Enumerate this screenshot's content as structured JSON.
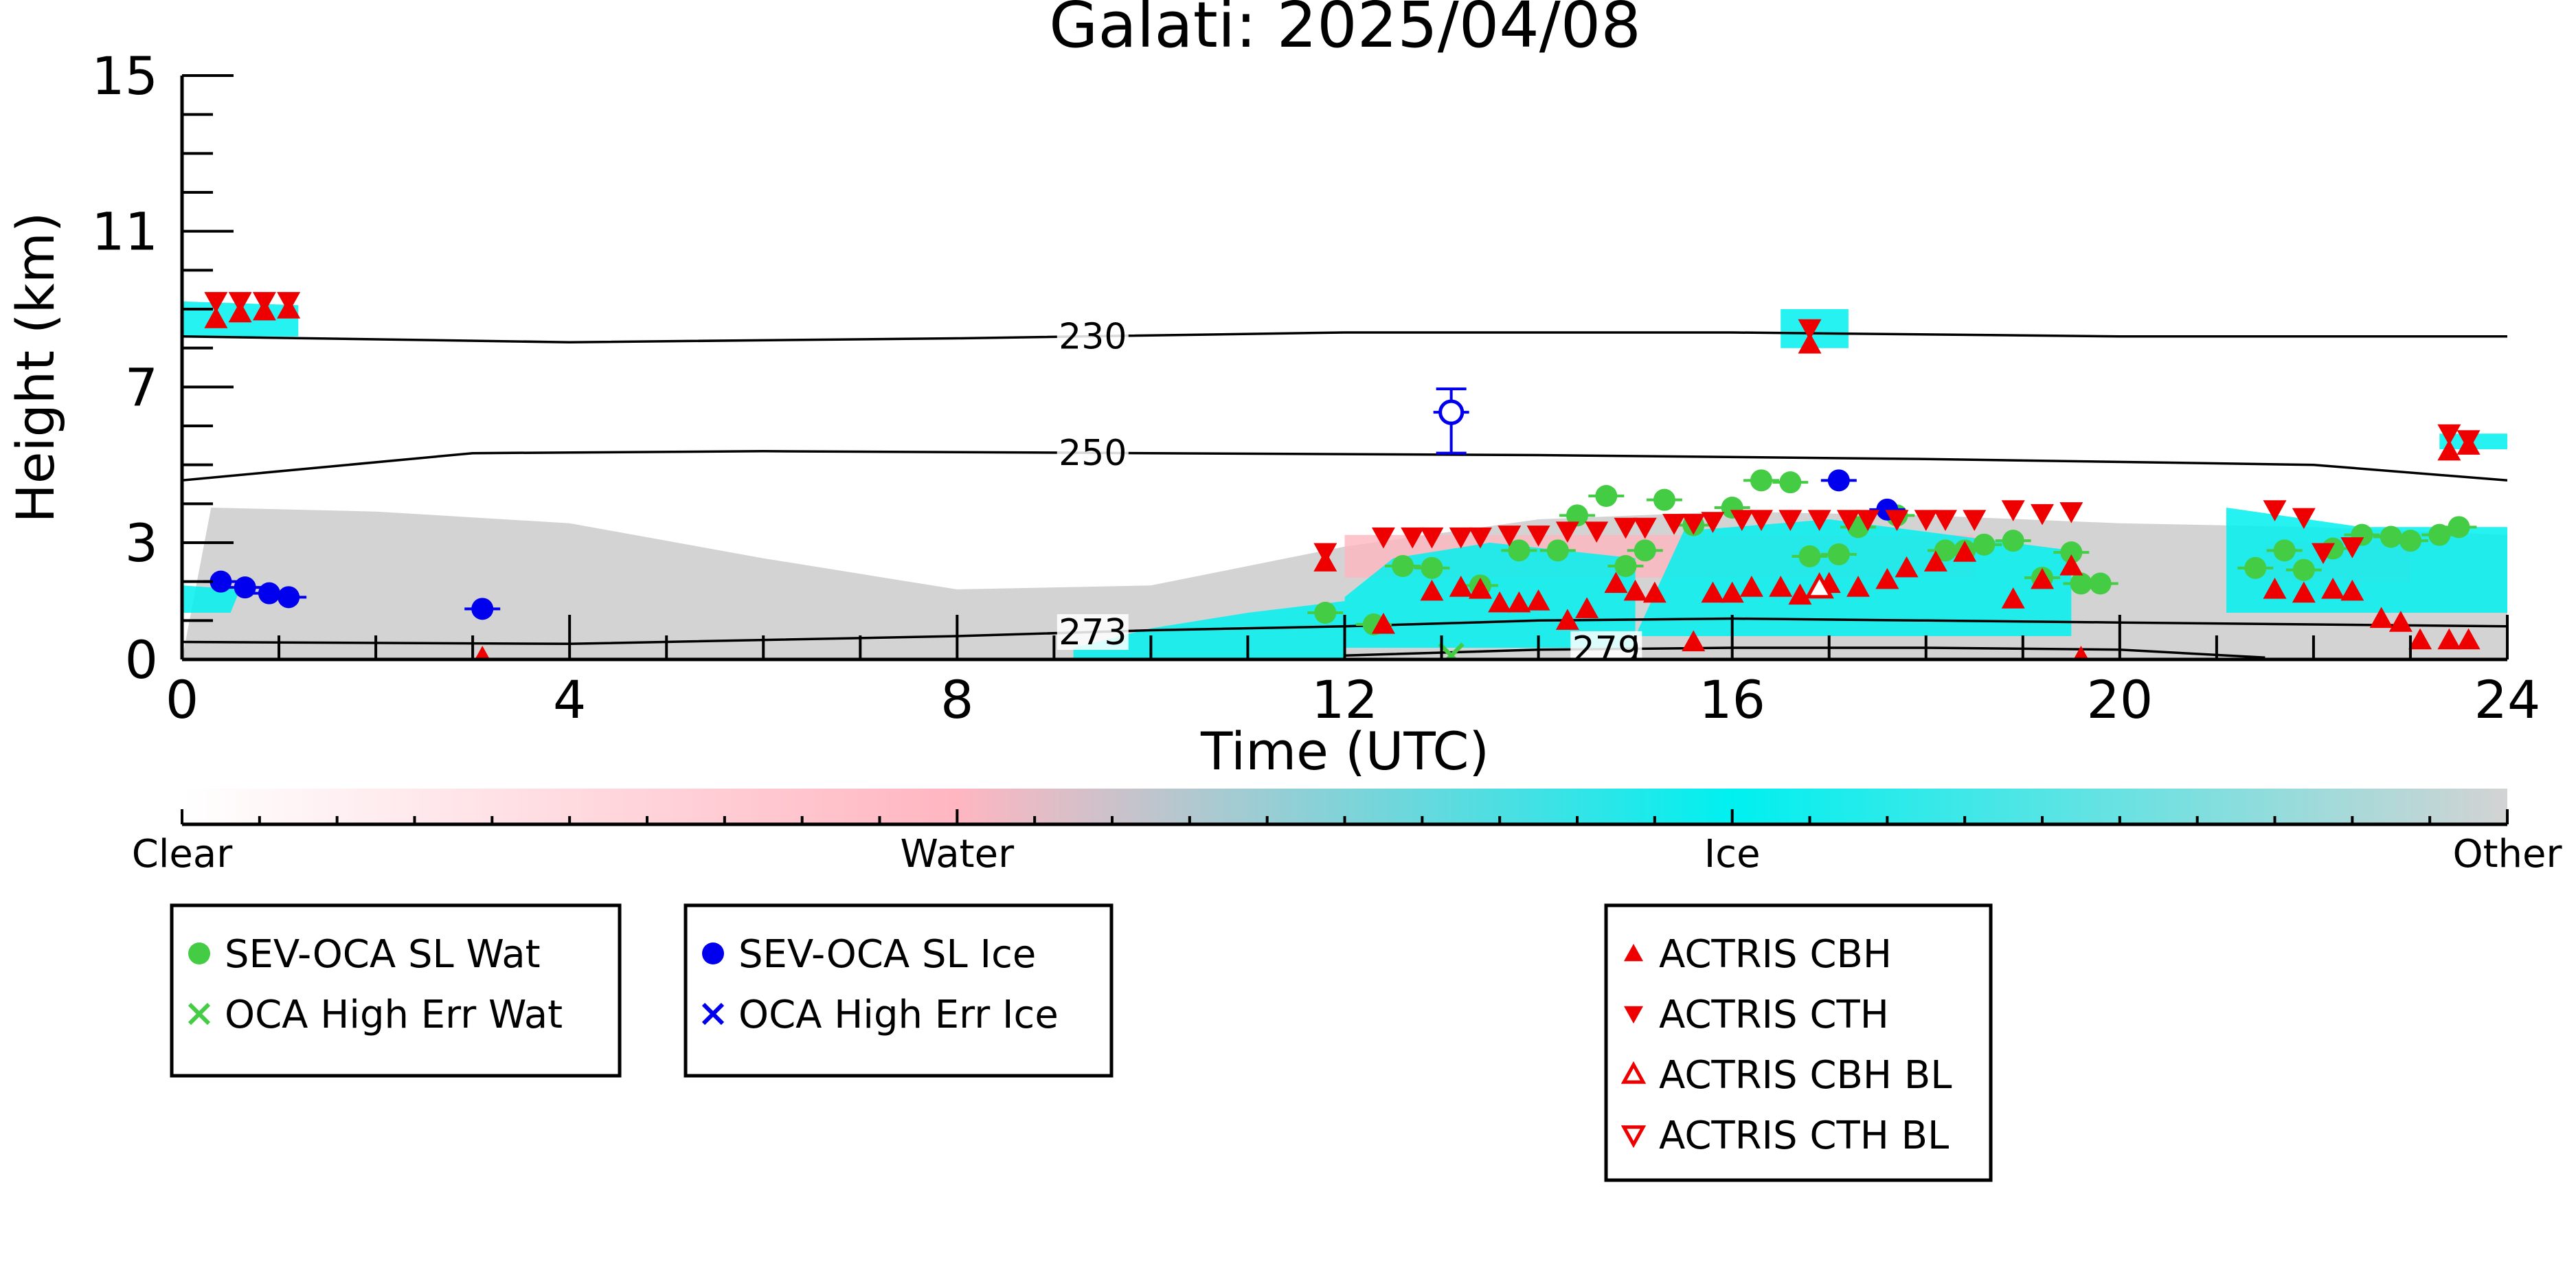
{
  "chart_data": {
    "type": "scatter",
    "title": "Galati: 2025/04/08",
    "xlabel": "Time (UTC)",
    "ylabel": "Height (km)",
    "xlim": [
      0,
      24
    ],
    "ylim": [
      0,
      15
    ],
    "x_ticks": [
      "0",
      "4",
      "8",
      "12",
      "16",
      "20",
      "24"
    ],
    "y_ticks": [
      "0",
      "3",
      "7",
      "11",
      "15"
    ],
    "background": {
      "description_type": "classification-curtain",
      "colors": {
        "clear": "#ffffff",
        "water": "#ffb6c1",
        "ice": "#00f0f0",
        "other": "#d3d3d3"
      },
      "other_layer": [
        [
          0,
          0
        ],
        [
          0.3,
          3.9
        ],
        [
          2,
          3.8
        ],
        [
          4,
          3.5
        ],
        [
          6,
          2.6
        ],
        [
          8,
          1.8
        ],
        [
          10,
          1.9
        ],
        [
          12,
          2.9
        ],
        [
          14,
          3.6
        ],
        [
          16,
          3.8
        ],
        [
          18,
          3.7
        ],
        [
          20,
          3.5
        ],
        [
          22,
          3.4
        ],
        [
          24,
          3.2
        ],
        [
          24,
          0
        ]
      ],
      "ice_patches": [
        [
          [
            0,
            8.3
          ],
          [
            1.2,
            8.3
          ],
          [
            1.2,
            9.1
          ],
          [
            0,
            9.2
          ]
        ],
        [
          [
            0,
            1.2
          ],
          [
            0.5,
            1.2
          ],
          [
            0.6,
            1.8
          ],
          [
            0,
            1.9
          ]
        ],
        [
          [
            9.2,
            0
          ],
          [
            12,
            0
          ],
          [
            12,
            1.5
          ],
          [
            11,
            1.2
          ],
          [
            10,
            0.8
          ],
          [
            9.2,
            0.3
          ]
        ],
        [
          [
            12,
            0.3
          ],
          [
            15,
            0.3
          ],
          [
            15,
            2.6
          ],
          [
            13.5,
            3
          ],
          [
            12.5,
            2.6
          ],
          [
            12,
            1.6
          ]
        ],
        [
          [
            15,
            0.6
          ],
          [
            19.5,
            0.6
          ],
          [
            19.5,
            2.8
          ],
          [
            17,
            3.6
          ],
          [
            15.5,
            3.3
          ]
        ],
        [
          [
            21.1,
            1.2
          ],
          [
            24,
            1.2
          ],
          [
            24,
            3.4
          ],
          [
            22.5,
            3.4
          ],
          [
            21.1,
            3.9
          ]
        ],
        [
          [
            23.3,
            5.4
          ],
          [
            24,
            5.4
          ],
          [
            24,
            5.8
          ],
          [
            23.3,
            5.8
          ]
        ],
        [
          [
            16.5,
            8
          ],
          [
            17.2,
            8
          ],
          [
            17.2,
            9
          ],
          [
            16.5,
            9
          ]
        ]
      ],
      "water_patches": [
        [
          [
            12,
            2.1
          ],
          [
            18.5,
            2.1
          ],
          [
            18.5,
            3.2
          ],
          [
            12,
            3.2
          ]
        ],
        [
          [
            21.5,
            2
          ],
          [
            23,
            2
          ],
          [
            23,
            3.0
          ],
          [
            21.5,
            3.0
          ]
        ]
      ]
    },
    "contours": [
      {
        "label": "230",
        "label_x": 9.4,
        "points": [
          [
            0,
            8.3
          ],
          [
            4,
            8.15
          ],
          [
            8,
            8.25
          ],
          [
            12,
            8.4
          ],
          [
            16,
            8.4
          ],
          [
            20,
            8.3
          ],
          [
            24,
            8.3
          ]
        ]
      },
      {
        "label": "250",
        "label_x": 9.4,
        "points": [
          [
            0,
            4.6
          ],
          [
            3,
            5.3
          ],
          [
            6,
            5.35
          ],
          [
            10,
            5.3
          ],
          [
            14,
            5.25
          ],
          [
            18,
            5.15
          ],
          [
            22,
            5.0
          ],
          [
            24,
            4.6
          ]
        ]
      },
      {
        "label": "273",
        "label_x": 9.4,
        "points": [
          [
            0,
            0.45
          ],
          [
            4,
            0.4
          ],
          [
            8,
            0.6
          ],
          [
            10,
            0.75
          ],
          [
            12,
            0.85
          ],
          [
            14,
            1.0
          ],
          [
            16,
            1.05
          ],
          [
            18,
            1.0
          ],
          [
            20,
            0.95
          ],
          [
            22,
            0.9
          ],
          [
            24,
            0.85
          ]
        ]
      },
      {
        "label": "279",
        "label_x": 14.7,
        "points": [
          [
            12,
            0.1
          ],
          [
            14,
            0.25
          ],
          [
            16,
            0.3
          ],
          [
            18,
            0.3
          ],
          [
            20,
            0.25
          ],
          [
            21.5,
            0.05
          ]
        ]
      }
    ],
    "series": [
      {
        "name": "SEV-OCA SL Wat",
        "marker": "circle-filled",
        "color": "#44cc44",
        "points": [
          [
            11.8,
            1.2
          ],
          [
            12.3,
            0.9
          ],
          [
            12.6,
            2.4
          ],
          [
            12.9,
            2.35
          ],
          [
            13.4,
            1.9
          ],
          [
            13.8,
            2.8
          ],
          [
            14.2,
            2.8
          ],
          [
            14.4,
            3.7
          ],
          [
            14.7,
            4.2
          ],
          [
            14.9,
            2.4
          ],
          [
            15.1,
            2.8
          ],
          [
            15.3,
            4.1
          ],
          [
            15.6,
            3.45
          ],
          [
            16,
            3.9
          ],
          [
            16.3,
            4.6
          ],
          [
            16.6,
            4.55
          ],
          [
            16.8,
            2.65
          ],
          [
            17.1,
            2.7
          ],
          [
            17.3,
            3.4
          ],
          [
            17.7,
            3.7
          ],
          [
            18.2,
            2.8
          ],
          [
            18.4,
            2.8
          ],
          [
            18.6,
            2.95
          ],
          [
            18.9,
            3.05
          ],
          [
            19.2,
            2.1
          ],
          [
            19.5,
            2.75
          ],
          [
            19.6,
            1.95
          ],
          [
            19.8,
            1.95
          ],
          [
            21.4,
            2.35
          ],
          [
            21.7,
            2.8
          ],
          [
            21.9,
            2.3
          ],
          [
            22.2,
            2.85
          ],
          [
            22.5,
            3.2
          ],
          [
            22.8,
            3.15
          ],
          [
            23,
            3.05
          ],
          [
            23.3,
            3.2
          ],
          [
            23.5,
            3.4
          ]
        ]
      },
      {
        "name": "OCA High Err Wat",
        "marker": "x",
        "color": "#44cc44",
        "points": [
          [
            13.1,
            0.1
          ]
        ]
      },
      {
        "name": "SEV-OCA SL Ice",
        "marker": "circle-filled",
        "color": "#0000ee",
        "points": [
          [
            0.4,
            2.0
          ],
          [
            0.65,
            1.85
          ],
          [
            0.9,
            1.7
          ],
          [
            1.1,
            1.6
          ],
          [
            3.1,
            1.3
          ],
          [
            17.1,
            4.6
          ],
          [
            17.6,
            3.85
          ]
        ]
      },
      {
        "name": "SEV-OCA SL Ice (open)",
        "marker": "circle-open",
        "color": "#0000ee",
        "points": [
          [
            13.1,
            6.35
          ]
        ]
      },
      {
        "name": "OCA High Err Ice",
        "marker": "x",
        "color": "#0000ee",
        "points": []
      },
      {
        "name": "ACTRIS CBH",
        "marker": "triangle-up",
        "color": "#ee0000",
        "points": [
          [
            0.35,
            8.75
          ],
          [
            0.6,
            8.9
          ],
          [
            0.85,
            8.95
          ],
          [
            1.1,
            9.0
          ],
          [
            3.1,
            0.05
          ],
          [
            11.8,
            2.5
          ],
          [
            12.4,
            0.9
          ],
          [
            12.9,
            1.75
          ],
          [
            13.2,
            1.85
          ],
          [
            13.4,
            1.8
          ],
          [
            13.6,
            1.45
          ],
          [
            13.8,
            1.45
          ],
          [
            14.0,
            1.5
          ],
          [
            14.3,
            1.0
          ],
          [
            14.5,
            1.3
          ],
          [
            14.8,
            1.95
          ],
          [
            15.0,
            1.75
          ],
          [
            15.2,
            1.7
          ],
          [
            15.6,
            0.45
          ],
          [
            15.8,
            1.7
          ],
          [
            16.0,
            1.7
          ],
          [
            16.2,
            1.85
          ],
          [
            16.5,
            1.85
          ],
          [
            16.7,
            1.65
          ],
          [
            17.0,
            1.95
          ],
          [
            17.3,
            1.85
          ],
          [
            17.6,
            2.05
          ],
          [
            17.8,
            2.35
          ],
          [
            18.1,
            2.5
          ],
          [
            18.4,
            2.75
          ],
          [
            18.9,
            1.55
          ],
          [
            19.2,
            2.05
          ],
          [
            19.5,
            2.4
          ],
          [
            19.6,
            0.05
          ],
          [
            21.6,
            1.8
          ],
          [
            21.9,
            1.7
          ],
          [
            22.2,
            1.8
          ],
          [
            22.4,
            1.75
          ],
          [
            22.7,
            1.05
          ],
          [
            22.9,
            0.95
          ],
          [
            23.1,
            0.5
          ],
          [
            23.4,
            0.5
          ],
          [
            23.6,
            0.5
          ],
          [
            23.4,
            5.35
          ],
          [
            23.6,
            5.5
          ],
          [
            16.8,
            8.1
          ]
        ]
      },
      {
        "name": "ACTRIS CTH",
        "marker": "triangle-down",
        "color": "#ee0000",
        "points": [
          [
            0.35,
            9.2
          ],
          [
            0.6,
            9.2
          ],
          [
            0.85,
            9.2
          ],
          [
            1.1,
            9.2
          ],
          [
            11.8,
            2.75
          ],
          [
            12.4,
            3.15
          ],
          [
            12.7,
            3.15
          ],
          [
            12.9,
            3.15
          ],
          [
            13.2,
            3.15
          ],
          [
            13.4,
            3.15
          ],
          [
            13.7,
            3.2
          ],
          [
            14.0,
            3.2
          ],
          [
            14.3,
            3.3
          ],
          [
            14.6,
            3.3
          ],
          [
            14.9,
            3.4
          ],
          [
            15.1,
            3.4
          ],
          [
            15.4,
            3.5
          ],
          [
            15.6,
            3.5
          ],
          [
            15.8,
            3.55
          ],
          [
            16.1,
            3.6
          ],
          [
            16.3,
            3.6
          ],
          [
            16.6,
            3.6
          ],
          [
            16.9,
            3.6
          ],
          [
            17.2,
            3.6
          ],
          [
            17.4,
            3.6
          ],
          [
            17.7,
            3.6
          ],
          [
            18.0,
            3.6
          ],
          [
            18.2,
            3.6
          ],
          [
            18.5,
            3.6
          ],
          [
            18.9,
            3.85
          ],
          [
            19.2,
            3.75
          ],
          [
            19.5,
            3.8
          ],
          [
            21.6,
            3.85
          ],
          [
            21.9,
            3.65
          ],
          [
            22.1,
            2.75
          ],
          [
            22.4,
            2.9
          ],
          [
            23.4,
            5.8
          ],
          [
            23.6,
            5.65
          ],
          [
            16.8,
            8.5
          ]
        ]
      },
      {
        "name": "ACTRIS CBH BL",
        "marker": "triangle-up-open",
        "color": "#ee0000",
        "points": [
          [
            16.9,
            1.85
          ]
        ]
      },
      {
        "name": "ACTRIS CTH BL",
        "marker": "triangle-down-open",
        "color": "#ee0000",
        "points": []
      }
    ],
    "colorbar": {
      "labels": [
        "Clear",
        "Water",
        "Ice",
        "Other"
      ],
      "stops": [
        "#ffffff",
        "#ffb6c1",
        "#00f0f0",
        "#d3d3d3"
      ]
    },
    "legends": [
      {
        "entries": [
          {
            "label": "SEV-OCA SL Wat",
            "marker": "circle-filled",
            "color": "#44cc44"
          },
          {
            "label": "OCA High Err Wat",
            "marker": "x",
            "color": "#44cc44"
          }
        ]
      },
      {
        "entries": [
          {
            "label": "SEV-OCA SL Ice",
            "marker": "circle-filled",
            "color": "#0000ee"
          },
          {
            "label": "OCA High Err Ice",
            "marker": "x",
            "color": "#0000ee"
          }
        ]
      },
      {
        "entries": [
          {
            "label": "ACTRIS CBH",
            "marker": "triangle-up",
            "color": "#ee0000"
          },
          {
            "label": "ACTRIS CTH",
            "marker": "triangle-down",
            "color": "#ee0000"
          },
          {
            "label": "ACTRIS CBH BL",
            "marker": "triangle-up-open",
            "color": "#ee0000"
          },
          {
            "label": "ACTRIS CTH BL",
            "marker": "triangle-down-open",
            "color": "#ee0000"
          }
        ]
      }
    ]
  }
}
